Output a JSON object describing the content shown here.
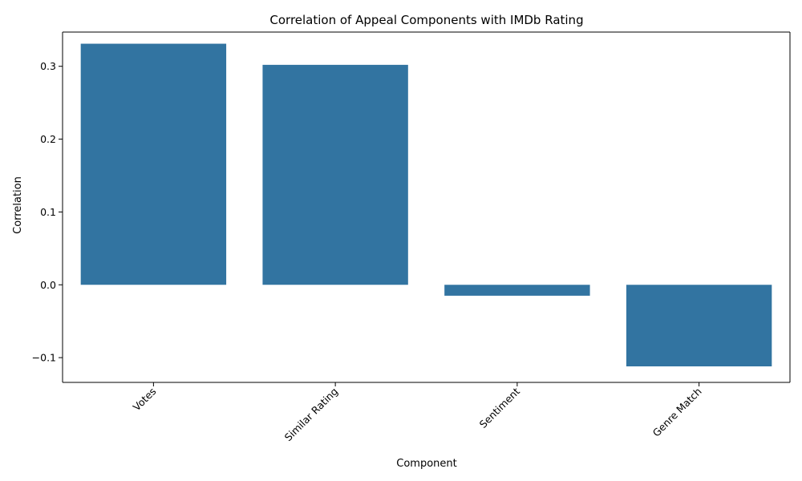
{
  "chart_data": {
    "type": "bar",
    "title": "Correlation of Appeal Components with IMDb Rating",
    "xlabel": "Component",
    "ylabel": "Correlation",
    "categories": [
      "Votes",
      "Similar Rating",
      "Sentiment",
      "Genre Match"
    ],
    "values": [
      0.331,
      0.302,
      -0.015,
      -0.112
    ],
    "ylim": [
      -0.134,
      0.347
    ],
    "yticks": [
      -0.1,
      0.0,
      0.1,
      0.2,
      0.3
    ],
    "ytick_labels": [
      "−0.1",
      "0.0",
      "0.1",
      "0.2",
      "0.3"
    ],
    "xtick_rotation": 45,
    "bar_color": "#3274a1",
    "grid": false,
    "legend": "none"
  }
}
